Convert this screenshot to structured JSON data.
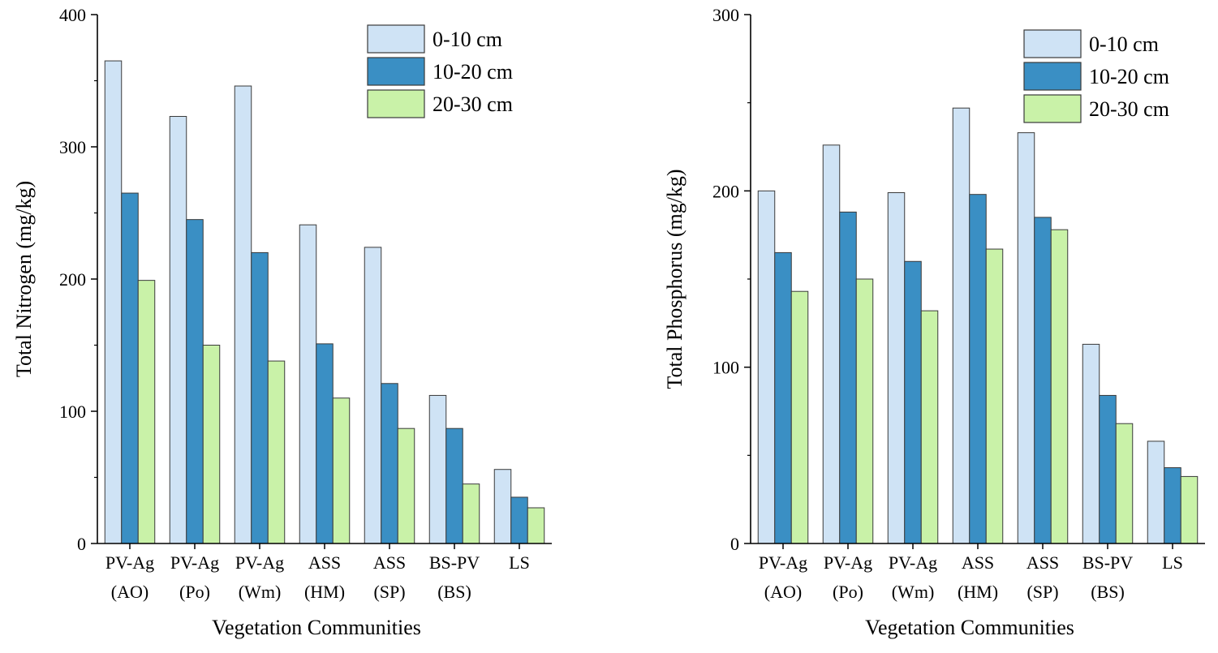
{
  "colors": {
    "series_0_10": "#cfe3f5",
    "series_10_20": "#3a8fc4",
    "series_20_30": "#c9f2a8",
    "bar_stroke": "#3a3a3a",
    "axis": "#000000"
  },
  "chart_data": [
    {
      "type": "bar",
      "title": "",
      "xlabel": "Vegetation Communities",
      "ylabel": "Total Nitrogen (mg/kg)",
      "ylim": [
        0,
        400
      ],
      "yticks": [
        0,
        100,
        200,
        300,
        400
      ],
      "grid": false,
      "legend_position": "top-right",
      "categories": [
        [
          "PV-Ag",
          "(AO)"
        ],
        [
          "PV-Ag",
          "(Po)"
        ],
        [
          "PV-Ag",
          "(Wm)"
        ],
        [
          "ASS",
          "(HM)"
        ],
        [
          "ASS",
          "(SP)"
        ],
        [
          "BS-PV",
          "(BS)"
        ],
        [
          "LS",
          ""
        ]
      ],
      "series": [
        {
          "name": "0-10 cm",
          "values": [
            365,
            323,
            346,
            241,
            224,
            112,
            56
          ]
        },
        {
          "name": "10-20 cm",
          "values": [
            265,
            245,
            220,
            151,
            121,
            87,
            35
          ]
        },
        {
          "name": "20-30 cm",
          "values": [
            199,
            150,
            138,
            110,
            87,
            45,
            27
          ]
        }
      ]
    },
    {
      "type": "bar",
      "title": "",
      "xlabel": "Vegetation Communities",
      "ylabel": "Total Phosphorus (mg/kg)",
      "ylim": [
        0,
        300
      ],
      "yticks": [
        0,
        100,
        200,
        300
      ],
      "grid": false,
      "legend_position": "top-right",
      "categories": [
        [
          "PV-Ag",
          "(AO)"
        ],
        [
          "PV-Ag",
          "(Po)"
        ],
        [
          "PV-Ag",
          "(Wm)"
        ],
        [
          "ASS",
          "(HM)"
        ],
        [
          "ASS",
          "(SP)"
        ],
        [
          "BS-PV",
          "(BS)"
        ],
        [
          "LS",
          ""
        ]
      ],
      "series": [
        {
          "name": "0-10 cm",
          "values": [
            200,
            226,
            199,
            247,
            233,
            113,
            58
          ]
        },
        {
          "name": "10-20 cm",
          "values": [
            165,
            188,
            160,
            198,
            185,
            84,
            43
          ]
        },
        {
          "name": "20-30 cm",
          "values": [
            143,
            150,
            132,
            167,
            178,
            68,
            38
          ]
        }
      ]
    }
  ]
}
